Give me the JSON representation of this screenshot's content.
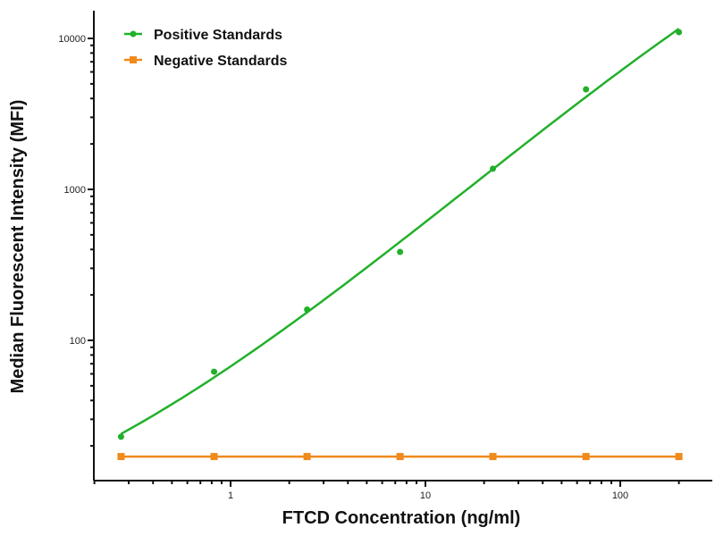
{
  "chart_data": {
    "type": "line",
    "title": "",
    "xlabel": "FTCD Concentration (ng/ml)",
    "ylabel": "Median Fluorescent Intensity (MFI)",
    "xscale": "log",
    "yscale": "log",
    "xlim": [
      0.2,
      500
    ],
    "ylim": [
      12,
      20000
    ],
    "xticks": [
      {
        "value": 1,
        "label": "1"
      },
      {
        "value": 10,
        "label": "10"
      },
      {
        "value": 100,
        "label": "100"
      }
    ],
    "yticks": [
      {
        "value": 100,
        "label": "100"
      },
      {
        "value": 1000,
        "label": "1000"
      },
      {
        "value": 10000,
        "label": "10000"
      }
    ],
    "grid": false,
    "legend_position": "top-left",
    "series": [
      {
        "name": "Positive Standards",
        "color": "#22b02a",
        "marker": "circle",
        "fit": "smooth-curve",
        "x": [
          0.274,
          0.823,
          2.47,
          7.41,
          22.2,
          66.7,
          200
        ],
        "y": [
          23,
          62,
          160,
          385,
          1370,
          4600,
          11000
        ]
      },
      {
        "name": "Negative Standards",
        "color": "#f08a1c",
        "marker": "square",
        "fit": "line",
        "x": [
          0.274,
          0.823,
          2.47,
          7.41,
          22.2,
          66.7,
          200
        ],
        "y": [
          17,
          17,
          17,
          17,
          17,
          17,
          17
        ]
      }
    ]
  }
}
